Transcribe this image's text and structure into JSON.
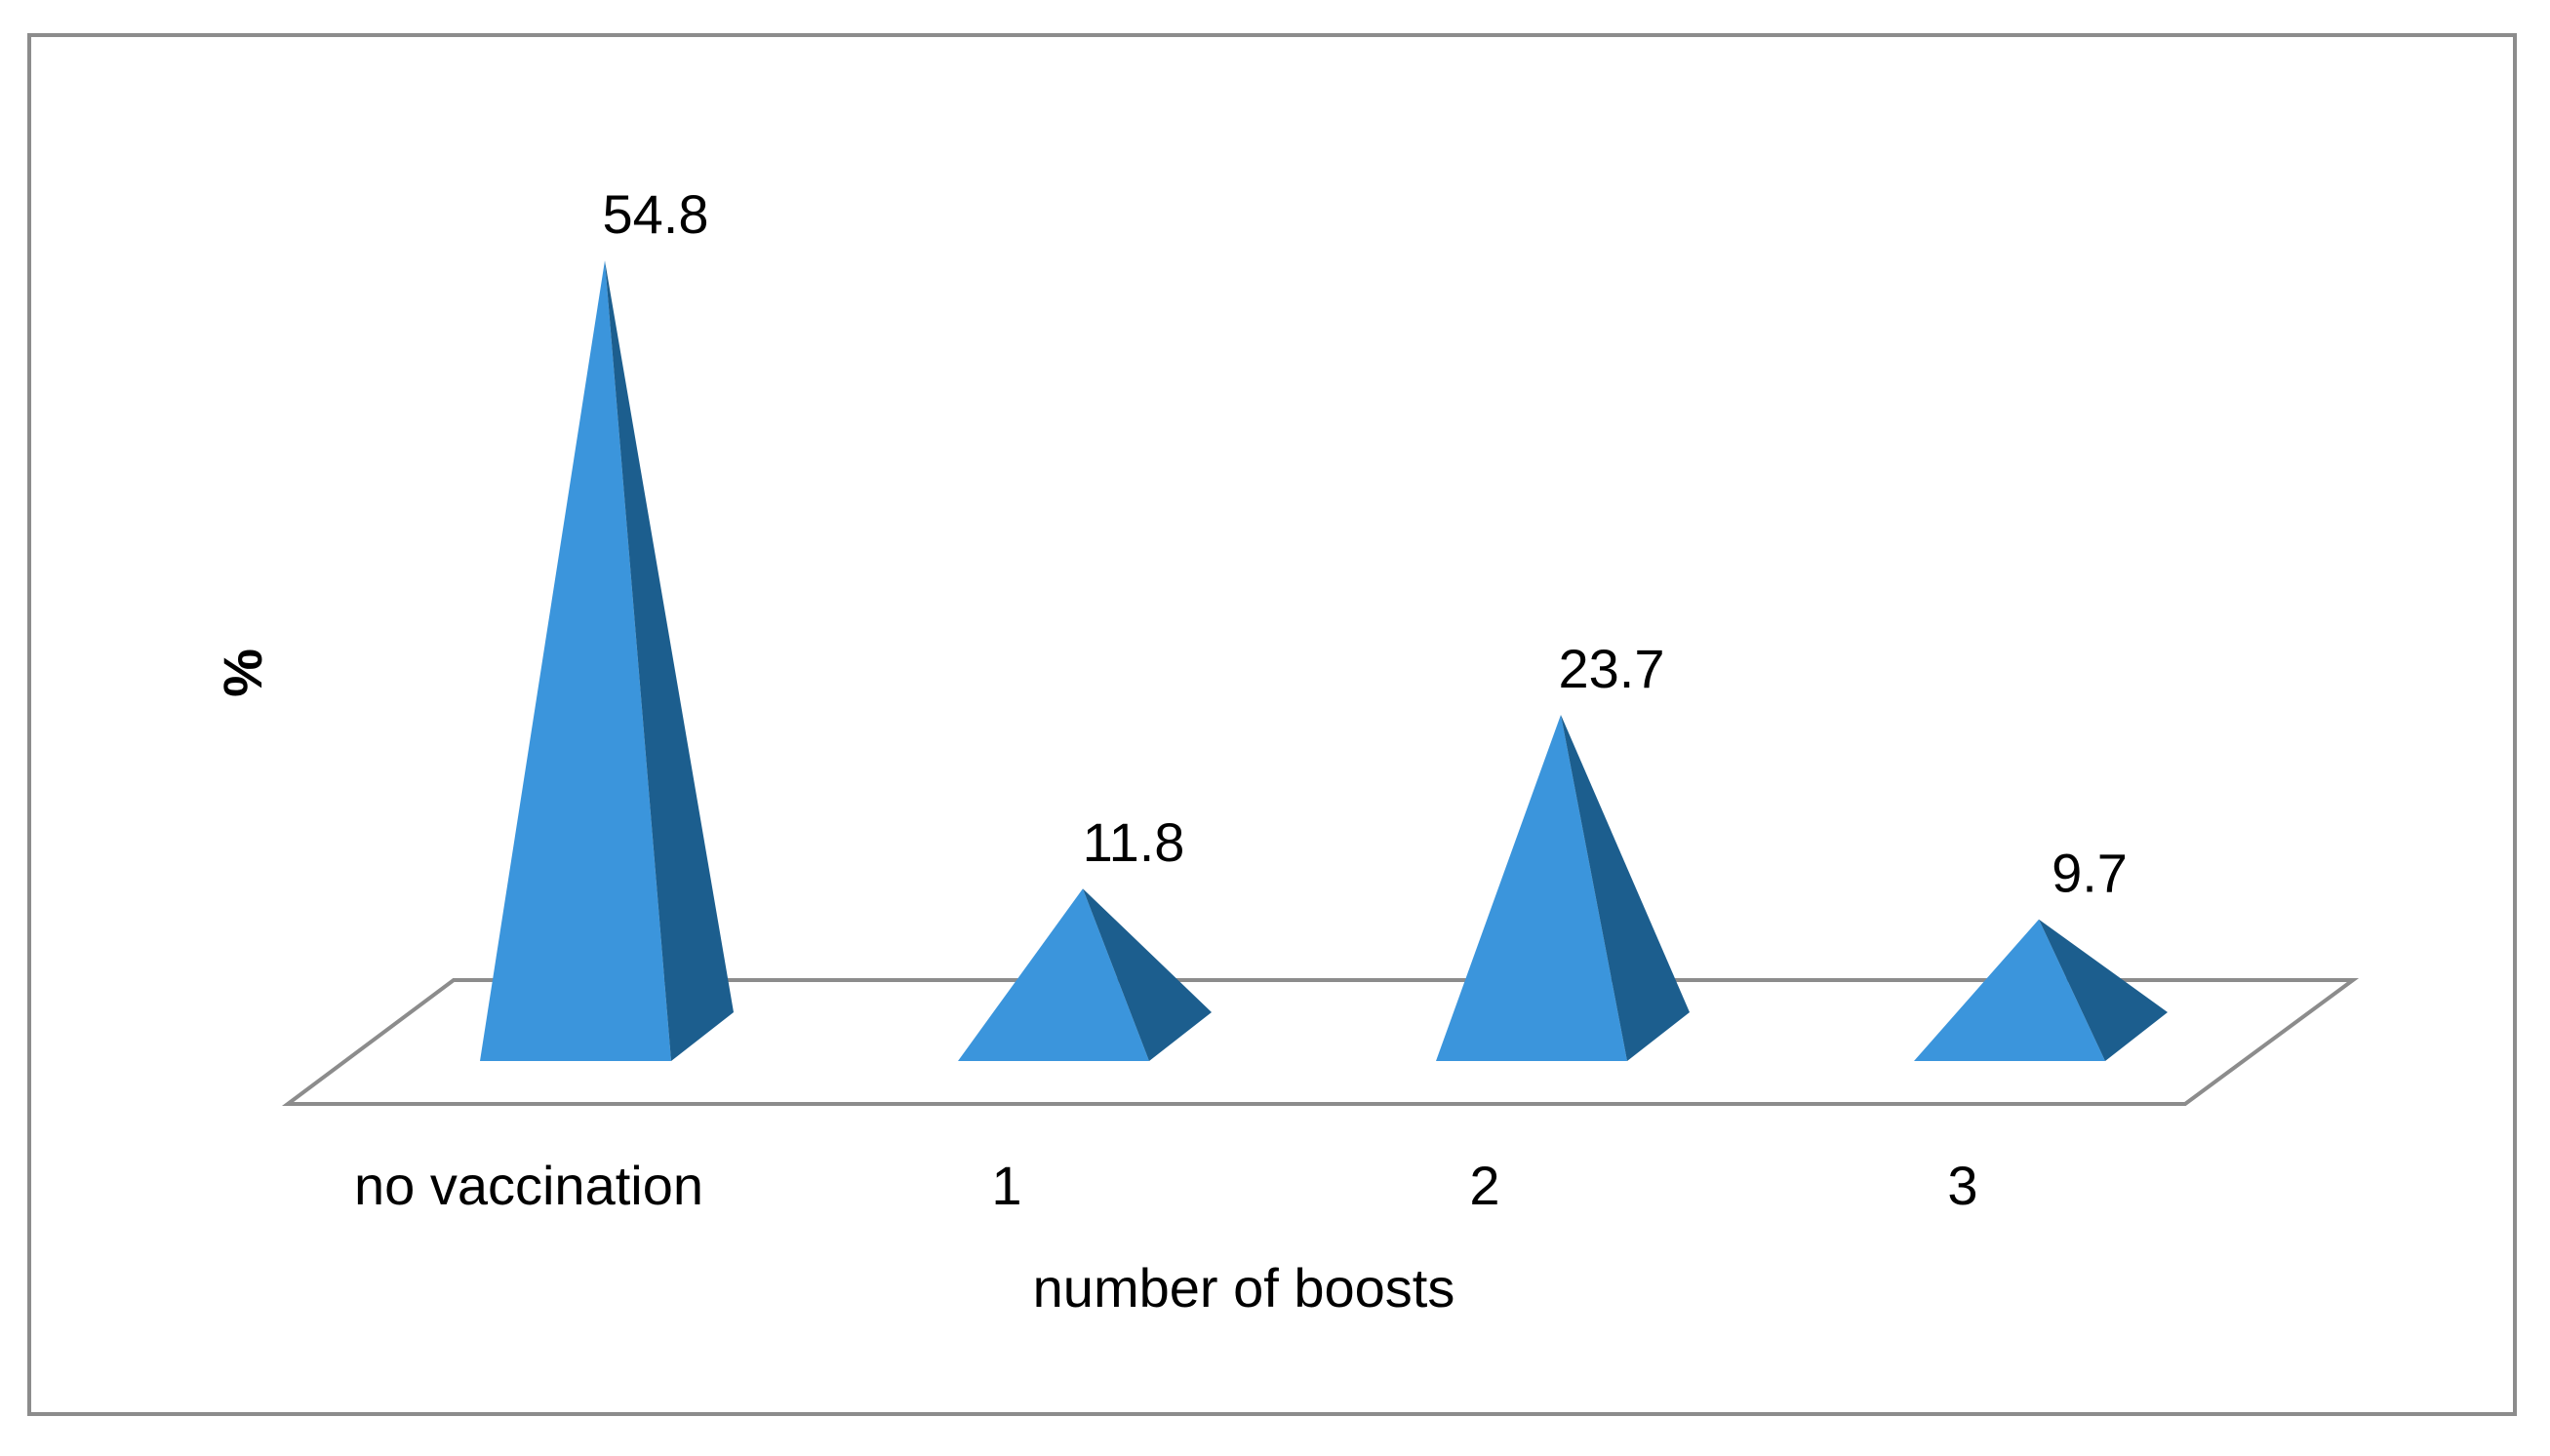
{
  "chart_data": {
    "type": "bar",
    "style": "3d-pyramid",
    "categories": [
      "no vaccination",
      "1",
      "2",
      "3"
    ],
    "values": [
      54.8,
      11.8,
      23.7,
      9.7
    ],
    "data_labels": [
      "54.8",
      "11.8",
      "23.7",
      "9.7"
    ],
    "title": "",
    "xlabel": "number of boosts",
    "ylabel": "%",
    "ylim": [
      0,
      60
    ],
    "grid": false,
    "legend": "none",
    "colors": {
      "front_face": "#3B95DC",
      "side_face": "#1C5E8E",
      "floor_stroke": "#8C8C8C",
      "frame_stroke": "#8C8C8C",
      "text": "#000000"
    }
  }
}
